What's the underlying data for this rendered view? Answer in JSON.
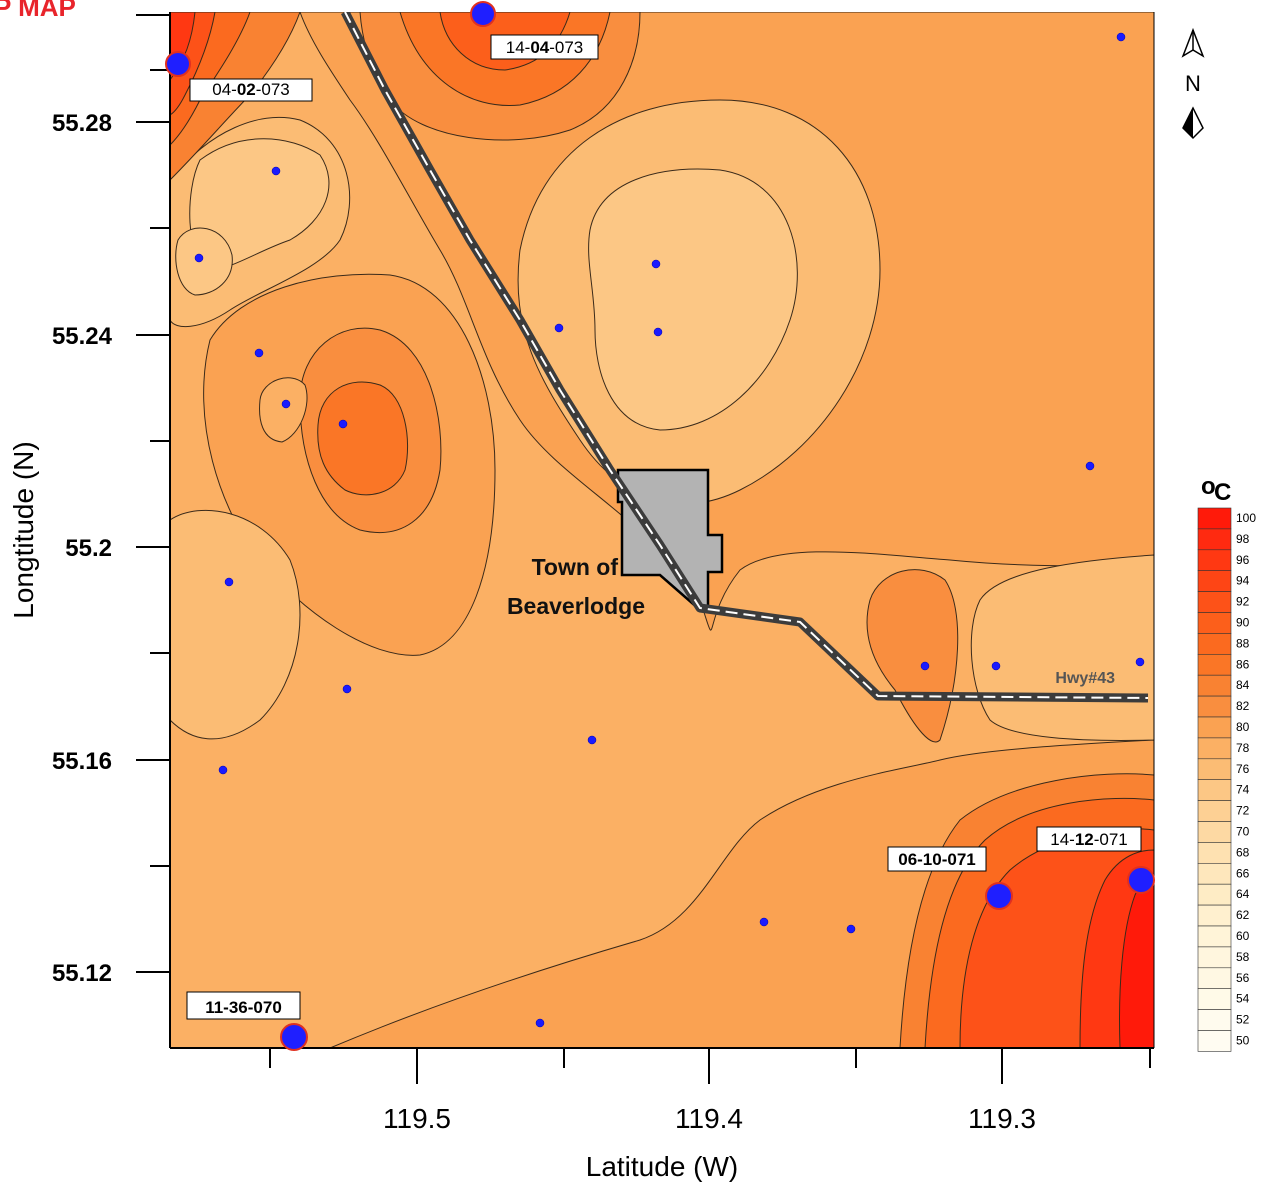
{
  "page_title": "P MAP",
  "axes": {
    "x_label": "Latitude (W)",
    "y_label": "Longtitude (N)",
    "x_ticks": [
      "119.5",
      "119.4",
      "119.3"
    ],
    "y_ticks": [
      "55.28",
      "55.24",
      "55.2",
      "55.16",
      "55.12"
    ]
  },
  "legend": {
    "unit_o": "o",
    "unit_c": "C",
    "values": [
      "100",
      "98",
      "96",
      "94",
      "92",
      "90",
      "88",
      "86",
      "84",
      "82",
      "80",
      "78",
      "76",
      "74",
      "72",
      "70",
      "68",
      "66",
      "64",
      "62",
      "60",
      "58",
      "56",
      "54",
      "52",
      "50"
    ],
    "colors": [
      "#ff1a0a",
      "#ff2a10",
      "#ff3812",
      "#fe4515",
      "#fd5218",
      "#fc5f1b",
      "#fb6a1f",
      "#fa7626",
      "#f98232",
      "#f98e3f",
      "#faa252",
      "#fbb064",
      "#fbbc74",
      "#fcc785",
      "#fdd094",
      "#fdd9a3",
      "#fee1b1",
      "#fee7bc",
      "#feecc5",
      "#fff0cf",
      "#fff4d8",
      "#fff6de",
      "#fff8e3",
      "#fffae8",
      "#fffbee",
      "#fffcf2"
    ]
  },
  "north_arrow": {
    "letter": "N"
  },
  "town": {
    "line1": "Town of",
    "line2": "Beaverlodge"
  },
  "highway": {
    "label": "Hwy#43"
  },
  "wells": [
    {
      "id": "w-04-02-073",
      "parts": [
        {
          "t": "04-",
          "b": false
        },
        {
          "t": "02",
          "b": true
        },
        {
          "t": "-073",
          "b": false
        }
      ]
    },
    {
      "id": "w-14-04-073",
      "parts": [
        {
          "t": "14-",
          "b": false
        },
        {
          "t": "04",
          "b": true
        },
        {
          "t": "-073",
          "b": false
        }
      ]
    },
    {
      "id": "w-06-10-071",
      "parts": [
        {
          "t": "06-10-071",
          "b": true
        }
      ]
    },
    {
      "id": "w-14-12-071",
      "parts": [
        {
          "t": "14-",
          "b": false
        },
        {
          "t": "12",
          "b": true
        },
        {
          "t": "-071",
          "b": false
        }
      ]
    },
    {
      "id": "w-11-36-070",
      "parts": [
        {
          "t": "11-",
          "b": true
        },
        {
          "t": "36",
          "b": true
        },
        {
          "t": "-070",
          "b": true
        }
      ]
    }
  ]
}
